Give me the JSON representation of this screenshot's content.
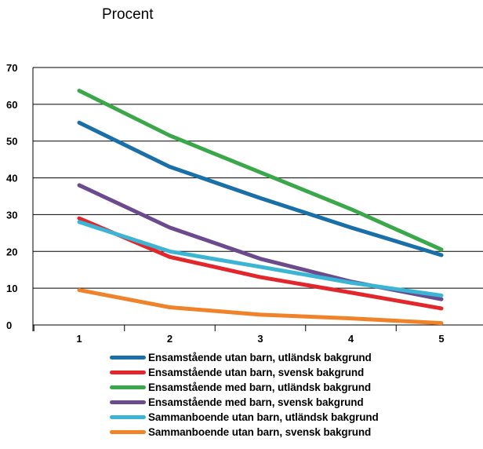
{
  "chart_data": {
    "type": "line",
    "ylabel": "Procent",
    "xlabel": "",
    "title": "",
    "x": [
      1,
      2,
      3,
      4,
      5
    ],
    "ylim": [
      0,
      70
    ],
    "yticks": [
      0,
      10,
      20,
      30,
      40,
      50,
      60,
      70
    ],
    "grid": "horizontal",
    "legend_position": "bottom",
    "series": [
      {
        "name": "Ensamstående utan barn, utländsk bakgrund",
        "color": "#1a6fa8",
        "values": [
          55,
          43,
          34.5,
          26.5,
          19
        ]
      },
      {
        "name": "Ensamstående utan barn, svensk bakgrund",
        "color": "#e3262c",
        "values": [
          29,
          18.5,
          13,
          8.8,
          4.5
        ]
      },
      {
        "name": "Ensamstående med barn, utländsk bakgrund",
        "color": "#3aa74a",
        "values": [
          63.7,
          51.5,
          41.5,
          31.5,
          20.5
        ]
      },
      {
        "name": "Ensamstående med barn, svensk bakgrund",
        "color": "#6b4a8e",
        "values": [
          38,
          26.5,
          18,
          11.8,
          7
        ]
      },
      {
        "name": "Sammanboende utan barn, utländsk bakgrund",
        "color": "#3bb5d3",
        "values": [
          28,
          20,
          15.8,
          11.5,
          8
        ]
      },
      {
        "name": "Sammanboende utan barn, svensk bakgrund",
        "color": "#f0822a",
        "values": [
          9.5,
          4.8,
          2.8,
          1.8,
          0.5
        ]
      }
    ]
  }
}
